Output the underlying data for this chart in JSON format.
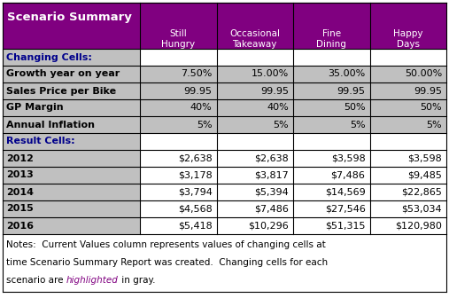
{
  "title": "Scenario Summary",
  "header_bg": "#800080",
  "header_text_color": "#ffffff",
  "col_headers": [
    "Still\nHungry",
    "Occasional\nTakeaway",
    "Fine\nDining",
    "Happy\nDays"
  ],
  "changing_label": "Changing Cells:",
  "result_label": "Result Cells:",
  "changing_rows": [
    {
      "label": "Growth year on year",
      "values": [
        "7.50%",
        "15.00%",
        "35.00%",
        "50.00%"
      ]
    },
    {
      "label": "Sales Price per Bike",
      "values": [
        "99.95",
        "99.95",
        "99.95",
        "99.95"
      ]
    },
    {
      "label": "GP Margin",
      "values": [
        "40%",
        "40%",
        "50%",
        "50%"
      ]
    },
    {
      "label": "Annual Inflation",
      "values": [
        "5%",
        "5%",
        "5%",
        "5%"
      ]
    }
  ],
  "result_rows": [
    {
      "label": "2012",
      "values": [
        "$2,638",
        "$2,638",
        "$3,598",
        "$3,598"
      ]
    },
    {
      "label": "2013",
      "values": [
        "$3,178",
        "$3,817",
        "$7,486",
        "$9,485"
      ]
    },
    {
      "label": "2014",
      "values": [
        "$3,794",
        "$5,394",
        "$14,569",
        "$22,865"
      ]
    },
    {
      "label": "2015",
      "values": [
        "$4,568",
        "$7,486",
        "$27,546",
        "$53,034"
      ]
    },
    {
      "label": "2016",
      "values": [
        "$5,418",
        "$10,296",
        "$51,315",
        "$120,980"
      ]
    }
  ],
  "purple_color": "#800080",
  "blue_label_color": "#00008B",
  "gray_bg": "#c0c0c0",
  "white_bg": "#ffffff",
  "section_white_bg": "#ffffff",
  "figsize": [
    5.07,
    3.45
  ],
  "dpi": 100
}
